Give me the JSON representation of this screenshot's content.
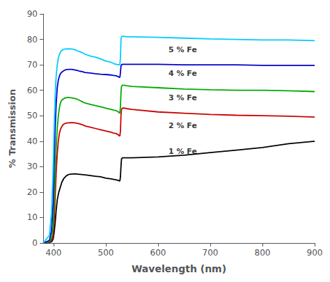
{
  "chart_data": {
    "type": "line",
    "xlabel": "Wavelength (nm)",
    "ylabel": "% Transmission",
    "xlim": [
      380,
      900
    ],
    "ylim": [
      0,
      90
    ],
    "xticks": [
      400,
      500,
      600,
      700,
      800,
      900
    ],
    "yticks": [
      0,
      10,
      20,
      30,
      40,
      50,
      60,
      70,
      80,
      90
    ],
    "grid": false,
    "series": [
      {
        "color": "#000000",
        "x": [
          380,
          392,
          396,
          399,
          401,
          403,
          405,
          407,
          410,
          413,
          416,
          420,
          425,
          430,
          440,
          450,
          460,
          470,
          480,
          490,
          500,
          510,
          515,
          520,
          525,
          526,
          527,
          528,
          529,
          530,
          532,
          535,
          540,
          550,
          600,
          650,
          700,
          750,
          800,
          850,
          900
        ],
        "values": [
          0,
          0.2,
          0.5,
          1.5,
          4,
          8,
          13,
          17,
          20,
          22,
          24,
          25.5,
          26.5,
          27,
          27.2,
          27,
          26.8,
          26.5,
          26.2,
          26,
          25.5,
          25.2,
          25,
          24.8,
          24.5,
          24.3,
          24.5,
          26,
          30,
          33,
          33.5,
          33.5,
          33.5,
          33.5,
          33.8,
          34.5,
          35.5,
          36.5,
          37.5,
          39,
          40
        ]
      },
      {
        "color": "#cc0000",
        "x": [
          380,
          392,
          396,
          399,
          401,
          403,
          405,
          407,
          409,
          411,
          413,
          415,
          418,
          422,
          428,
          435,
          440,
          445,
          450,
          455,
          460,
          470,
          480,
          490,
          500,
          510,
          515,
          520,
          524,
          525,
          526,
          527,
          528,
          529,
          530,
          532,
          535,
          540,
          550,
          600,
          650,
          700,
          750,
          800,
          850,
          900
        ],
        "values": [
          0,
          0.3,
          1,
          3,
          8,
          18,
          28,
          35,
          40,
          43,
          44.5,
          45.5,
          46.5,
          47,
          47.2,
          47.3,
          47.2,
          47,
          46.8,
          46.5,
          46,
          45.5,
          45,
          44.5,
          44,
          43.5,
          43.2,
          43,
          42.5,
          42.3,
          42,
          42.2,
          44,
          50,
          52.5,
          53,
          53,
          52.8,
          52.5,
          51.5,
          51,
          50.5,
          50.2,
          50,
          49.8,
          49.5
        ]
      },
      {
        "color": "#00aa00",
        "x": [
          380,
          392,
          396,
          399,
          401,
          403,
          405,
          407,
          409,
          411,
          413,
          415,
          418,
          422,
          428,
          435,
          440,
          445,
          450,
          455,
          460,
          470,
          480,
          490,
          500,
          510,
          515,
          520,
          524,
          525,
          526,
          527,
          528,
          529,
          530,
          532,
          535,
          540,
          550,
          600,
          650,
          700,
          750,
          800,
          850,
          900
        ],
        "values": [
          0,
          0.5,
          2,
          6,
          15,
          27,
          38,
          45,
          50,
          53,
          55,
          56,
          56.5,
          57,
          57.2,
          57,
          56.8,
          56.5,
          56,
          55.5,
          55,
          54.5,
          54,
          53.5,
          53,
          52.5,
          52.2,
          52,
          51.5,
          51.3,
          51,
          51.2,
          53.5,
          59,
          61.5,
          62,
          62,
          61.8,
          61.5,
          61,
          60.5,
          60.2,
          60,
          60,
          59.8,
          59.5
        ]
      },
      {
        "color": "#0000cc",
        "x": [
          380,
          392,
          396,
          399,
          401,
          403,
          405,
          407,
          409,
          411,
          413,
          415,
          418,
          422,
          428,
          435,
          440,
          445,
          450,
          455,
          460,
          470,
          480,
          490,
          500,
          510,
          515,
          520,
          524,
          525,
          526,
          527,
          528,
          529,
          530,
          532,
          535,
          540,
          550,
          600,
          650,
          700,
          750,
          800,
          850,
          900
        ],
        "values": [
          0,
          1,
          5,
          15,
          30,
          45,
          55,
          61,
          64,
          65.5,
          66.5,
          67,
          67.5,
          68,
          68.2,
          68.2,
          68,
          67.8,
          67.5,
          67.3,
          67,
          66.8,
          66.5,
          66.3,
          66.2,
          66,
          65.8,
          65.7,
          65.3,
          65.2,
          65,
          65.2,
          67,
          69.5,
          70,
          70.2,
          70.2,
          70.2,
          70.2,
          70.2,
          70,
          70,
          70,
          69.8,
          69.8,
          69.8
        ]
      },
      {
        "color": "#00ccff",
        "x": [
          380,
          392,
          396,
          399,
          401,
          403,
          405,
          407,
          409,
          411,
          413,
          415,
          418,
          422,
          428,
          435,
          440,
          445,
          450,
          455,
          460,
          470,
          480,
          490,
          500,
          510,
          515,
          520,
          524,
          525,
          526,
          527,
          528,
          529,
          530,
          532,
          535,
          540,
          550,
          600,
          650,
          700,
          750,
          800,
          850,
          900
        ],
        "values": [
          0,
          3,
          12,
          28,
          45,
          58,
          66,
          70,
          72.5,
          74,
          75,
          75.5,
          76,
          76.2,
          76.3,
          76.2,
          76,
          75.5,
          75.2,
          74.8,
          74.2,
          73.5,
          73,
          72.3,
          71.5,
          71,
          70.5,
          70.2,
          70,
          70,
          70,
          70.2,
          73,
          80,
          81,
          81.2,
          81.2,
          81,
          81,
          80.8,
          80.5,
          80.2,
          80,
          79.8,
          79.8,
          79.5
        ]
      }
    ],
    "annotations": [
      {
        "text": "5 % Fe",
        "x": 620,
        "y": 76,
        "color": "black"
      },
      {
        "text": "4 % Fe",
        "x": 620,
        "y": 66.5,
        "color": "black"
      },
      {
        "text": "3 % Fe",
        "x": 620,
        "y": 57,
        "color": "black"
      },
      {
        "text": "2 % Fe",
        "x": 620,
        "y": 46,
        "color": "black"
      },
      {
        "text": "1 % Fe",
        "x": 620,
        "y": 36,
        "color": "black"
      }
    ]
  }
}
